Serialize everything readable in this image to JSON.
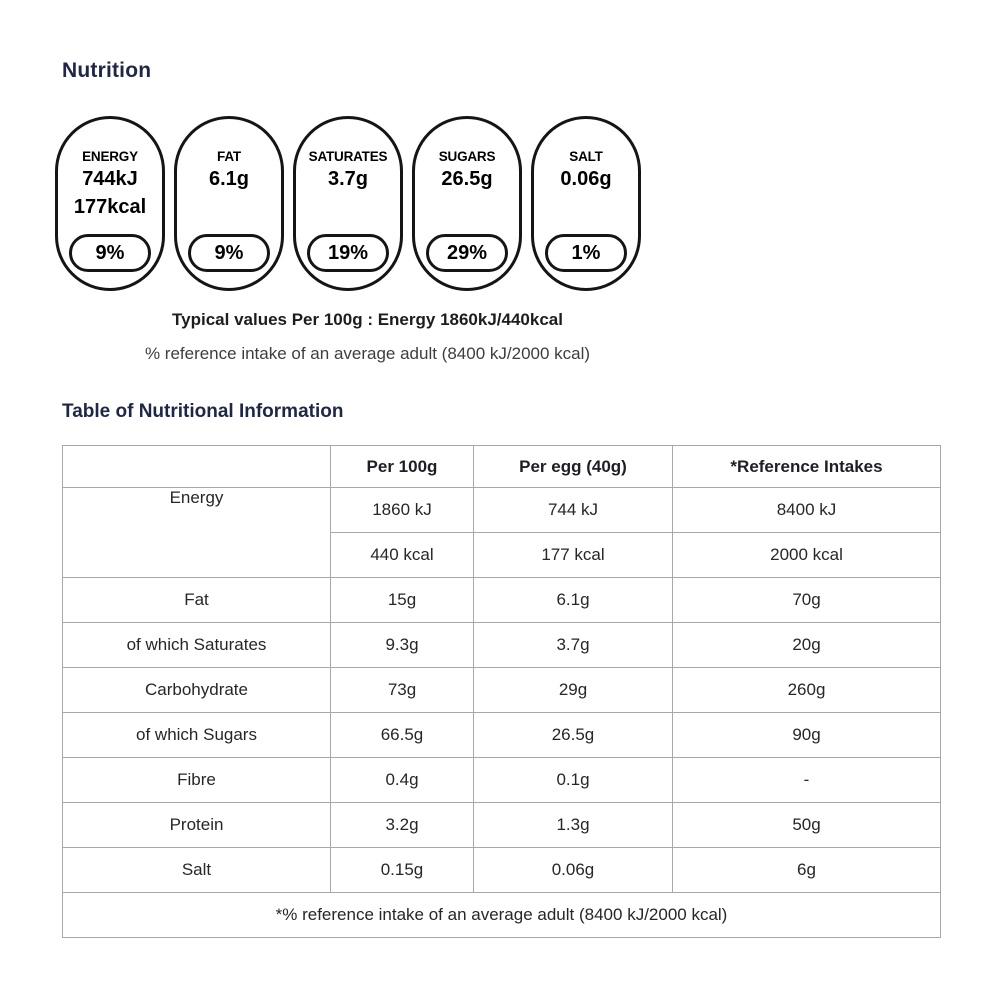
{
  "headings": {
    "nutrition": "Nutrition",
    "table": "Table of Nutritional Information"
  },
  "badges": [
    {
      "label": "ENERGY",
      "value": "744kJ",
      "value2": "177kcal",
      "percent": "9%"
    },
    {
      "label": "FAT",
      "value": "6.1g",
      "value2": "",
      "percent": "9%"
    },
    {
      "label": "SATURATES",
      "value": "3.7g",
      "value2": "",
      "percent": "19%"
    },
    {
      "label": "SUGARS",
      "value": "26.5g",
      "value2": "",
      "percent": "29%"
    },
    {
      "label": "SALT",
      "value": "0.06g",
      "value2": "",
      "percent": "1%"
    }
  ],
  "notes": {
    "typical_values": "Typical values Per 100g : Energy 1860kJ/440kcal",
    "reference_intake": "% reference intake of an average adult (8400 kJ/2000 kcal)"
  },
  "table": {
    "headers": [
      "Per 100g",
      "Per egg (40g)",
      "*Reference Intakes"
    ],
    "rows": [
      {
        "label": "Energy",
        "values": [
          "1860 kJ",
          "744 kJ",
          "8400 kJ"
        ]
      },
      {
        "label": "",
        "values": [
          "440 kcal",
          "177 kcal",
          "2000 kcal"
        ]
      },
      {
        "label": "Fat",
        "values": [
          "15g",
          "6.1g",
          "70g"
        ]
      },
      {
        "label": "of which Saturates",
        "values": [
          "9.3g",
          "3.7g",
          "20g"
        ]
      },
      {
        "label": "Carbohydrate",
        "values": [
          "73g",
          "29g",
          "260g"
        ]
      },
      {
        "label": "of which Sugars",
        "values": [
          "66.5g",
          "26.5g",
          "90g"
        ]
      },
      {
        "label": "Fibre",
        "values": [
          "0.4g",
          "0.1g",
          "-"
        ]
      },
      {
        "label": "Protein",
        "values": [
          "3.2g",
          "1.3g",
          "50g"
        ]
      },
      {
        "label": "Salt",
        "values": [
          "0.15g",
          "0.06g",
          "6g"
        ]
      }
    ],
    "footnote": "*% reference intake of an average adult (8400 kJ/2000 kcal)"
  },
  "colors": {
    "heading": "#1f2747",
    "body_text": "#26262b",
    "pill_border": "#151515",
    "table_border": "#a8a8a8",
    "background": "#ffffff"
  }
}
